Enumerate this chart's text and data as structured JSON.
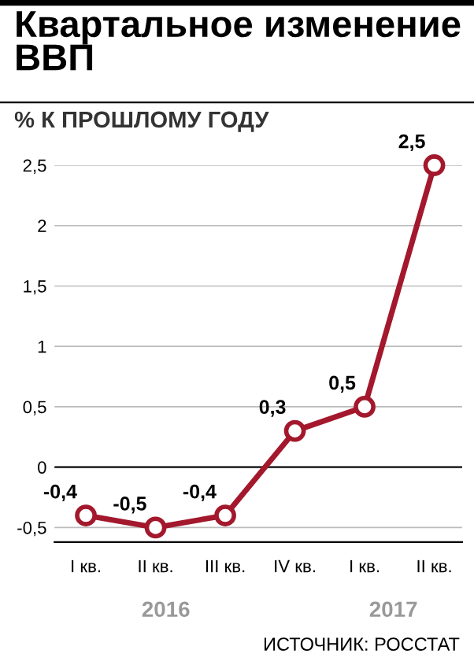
{
  "chart_data": {
    "type": "line",
    "title": "Квартальное изменение ВВП",
    "subtitle": "% К ПРОШЛОМУ ГОДУ",
    "categories": [
      "I кв.",
      "II кв.",
      "III кв.",
      "IV кв.",
      "I кв.",
      "II кв."
    ],
    "series": [
      {
        "color": "#a3182c",
        "values": [
          -0.4,
          -0.5,
          -0.4,
          0.3,
          0.5,
          2.5
        ],
        "value_labels": [
          "-0,4",
          "-0,5",
          "-0,4",
          "0,3",
          "0,5",
          "2,5"
        ]
      }
    ],
    "ylim": [
      -0.62,
      2.5
    ],
    "yticks": [
      {
        "value": -0.5,
        "label": "-0,5"
      },
      0,
      {
        "value": 0.5,
        "label": "0,5"
      },
      1,
      {
        "value": 1.5,
        "label": "1,5"
      },
      2,
      {
        "value": 2.5,
        "label": "2,5"
      }
    ],
    "grid": "y",
    "marker": "circle",
    "line_style": "solid",
    "legend": false,
    "ref_lines": [
      {
        "axis": "y",
        "value": 0,
        "color": "#333333"
      }
    ],
    "annotations": [
      "2016",
      "2017",
      "ИСТОЧНИК: РОССТАТ"
    ]
  }
}
